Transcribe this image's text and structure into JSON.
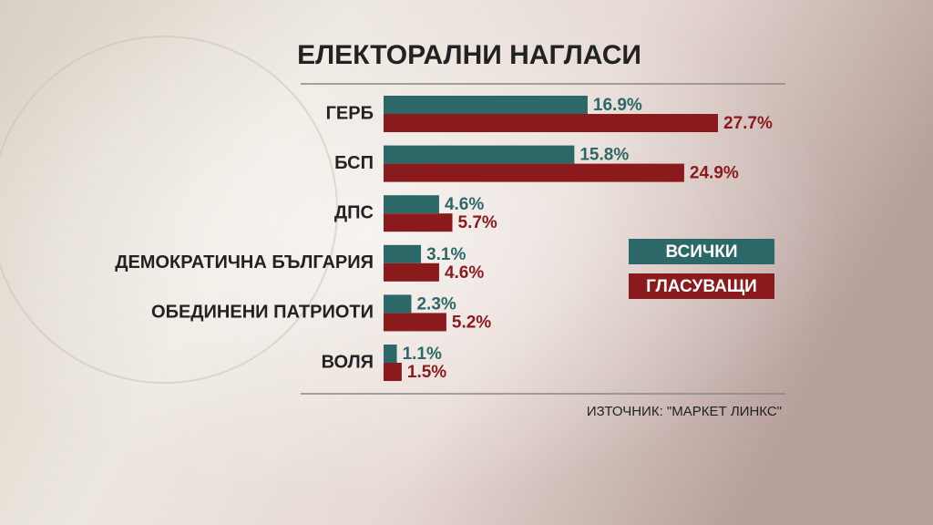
{
  "chart_data": {
    "type": "bar",
    "orientation": "horizontal",
    "title": "ЕЛЕКТОРАЛНИ НАГЛАСИ",
    "source": "ИЗТОЧНИК: \"МАРКЕТ ЛИНКС\"",
    "categories": [
      "ГЕРБ",
      "БСП",
      "ДПС",
      "ДЕМОКРАТИЧНА БЪЛГАРИЯ",
      "ОБЕДИНЕНИ ПАТРИОТИ",
      "ВОЛЯ"
    ],
    "series": [
      {
        "name": "ВСИЧКИ",
        "color": "#2c6868",
        "values": [
          16.9,
          15.8,
          4.6,
          3.1,
          2.3,
          1.1
        ],
        "value_labels": [
          "16.9%",
          "15.8%",
          "4.6%",
          "3.1%",
          "2.3%",
          "1.1%"
        ]
      },
      {
        "name": "ГЛАСУВАЩИ",
        "color": "#8a1a1c",
        "values": [
          27.7,
          24.9,
          5.7,
          4.6,
          5.2,
          1.5
        ],
        "value_labels": [
          "27.7%",
          "24.9%",
          "5.7%",
          "4.6%",
          "5.2%",
          "1.5%"
        ]
      }
    ]
  }
}
